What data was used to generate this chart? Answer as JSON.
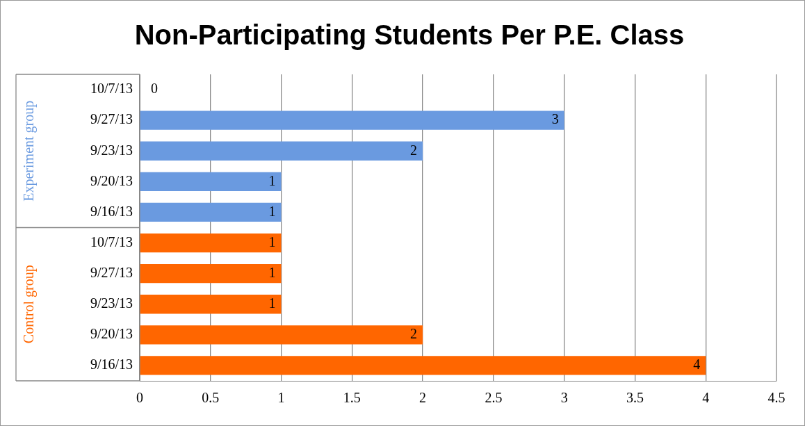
{
  "chart_data": {
    "type": "bar",
    "title": "Non-Participating Students Per P.E. Class",
    "orientation": "horizontal",
    "stacked": true,
    "categories": [
      "10/7/13",
      "9/27/13",
      "9/23/13",
      "9/20/13",
      "9/16/13",
      "10/7/13",
      "9/27/13",
      "9/23/13",
      "9/20/13",
      "9/16/13"
    ],
    "series": [
      {
        "name": "Experiment group",
        "color": "#6a9ae0",
        "values": [
          0,
          3,
          2,
          1,
          1,
          null,
          null,
          null,
          null,
          null
        ]
      },
      {
        "name": "Control group",
        "color": "#ff6600",
        "values": [
          null,
          null,
          null,
          null,
          null,
          1,
          1,
          1,
          2,
          4
        ]
      }
    ],
    "xlim": [
      0,
      4.5
    ],
    "xticks": [
      0,
      0.5,
      1,
      1.5,
      2,
      2.5,
      3,
      3.5,
      4,
      4.5
    ],
    "grid": "x",
    "data_labels": true,
    "legend": false
  }
}
